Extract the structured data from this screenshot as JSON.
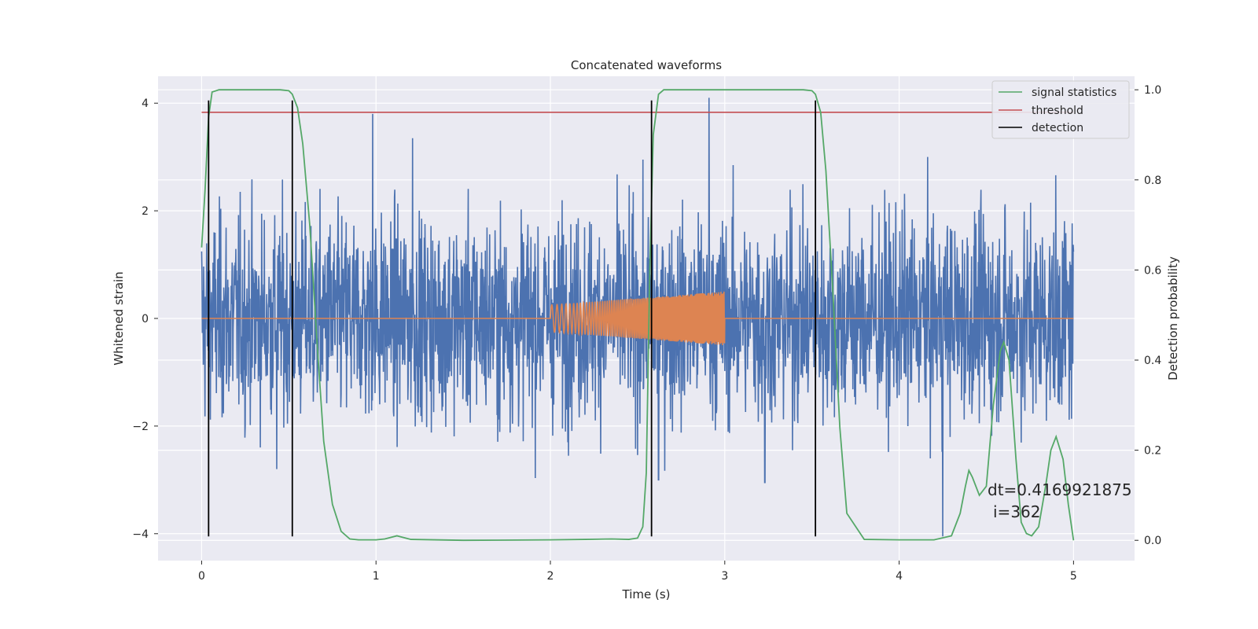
{
  "chart_data": {
    "type": "line",
    "title": "Concatenated waveforms",
    "xlabel": "Time (s)",
    "ylabel": "Whitened strain",
    "y2label": "Detection probability",
    "xlim": [
      -0.25,
      5.35
    ],
    "ylim": [
      -4.5,
      4.5
    ],
    "y2lim": [
      -0.045,
      1.03
    ],
    "xticks": [
      0,
      1,
      2,
      3,
      4,
      5
    ],
    "yticks": [
      -4,
      -2,
      0,
      2,
      4
    ],
    "y2ticks": [
      0.0,
      0.2,
      0.4,
      0.6,
      0.8,
      1.0
    ],
    "x_tick_labels": [
      "0",
      "1",
      "2",
      "3",
      "4",
      "5"
    ],
    "y_tick_labels": [
      "−4",
      "−2",
      "0",
      "2",
      "4"
    ],
    "y2_tick_labels": [
      "0.0",
      "0.2",
      "0.4",
      "0.6",
      "0.8",
      "1.0"
    ],
    "grid": true,
    "legend_position": "top-right",
    "legend": [
      {
        "name": "signal statistics",
        "color": "#55a868"
      },
      {
        "name": "threshold",
        "color": "#c44e52"
      },
      {
        "name": "detection",
        "color": "#000000"
      }
    ],
    "noise_series": {
      "color": "#4c72b0",
      "x_range": [
        0,
        5
      ],
      "typical_amplitude": 1.3,
      "peaks": [
        {
          "x": 0.98,
          "y": 3.8
        },
        {
          "x": 1.21,
          "y": 3.35
        },
        {
          "x": 2.91,
          "y": 4.1
        },
        {
          "x": 4.25,
          "y": -4.05
        },
        {
          "x": 2.62,
          "y": -3.0
        },
        {
          "x": 3.23,
          "y": -3.05
        },
        {
          "x": 0.43,
          "y": -2.8
        }
      ]
    },
    "chirp_series": {
      "color": "#dd8452",
      "x_range": [
        0,
        5
      ],
      "burst_start": 2.0,
      "burst_end": 3.0,
      "amplitude_start": 0.25,
      "amplitude_end": 0.5
    },
    "signal_statistics": {
      "color": "#55a868",
      "x": [
        0.0,
        0.02,
        0.04,
        0.06,
        0.1,
        0.2,
        0.3,
        0.4,
        0.45,
        0.5,
        0.52,
        0.55,
        0.58,
        0.62,
        0.66,
        0.7,
        0.75,
        0.8,
        0.85,
        0.9,
        1.0,
        1.05,
        1.12,
        1.2,
        1.5,
        2.0,
        2.2,
        2.35,
        2.45,
        2.5,
        2.53,
        2.55,
        2.57,
        2.59,
        2.62,
        2.65,
        2.7,
        3.0,
        3.3,
        3.45,
        3.5,
        3.52,
        3.55,
        3.58,
        3.62,
        3.66,
        3.7,
        3.8,
        4.0,
        4.2,
        4.3,
        4.35,
        4.38,
        4.4,
        4.42,
        4.46,
        4.5,
        4.54,
        4.58,
        4.6,
        4.63,
        4.67,
        4.7,
        4.73,
        4.76,
        4.8,
        4.84,
        4.87,
        4.9,
        4.94,
        4.97,
        5.0
      ],
      "y": [
        0.65,
        0.78,
        0.94,
        0.995,
        1.0,
        1.0,
        1.0,
        1.0,
        1.0,
        0.998,
        0.99,
        0.96,
        0.88,
        0.7,
        0.45,
        0.22,
        0.08,
        0.02,
        0.003,
        0.001,
        0.001,
        0.003,
        0.01,
        0.002,
        0.0,
        0.001,
        0.002,
        0.003,
        0.002,
        0.005,
        0.03,
        0.15,
        0.6,
        0.9,
        0.99,
        1.0,
        1.0,
        1.0,
        1.0,
        1.0,
        0.998,
        0.99,
        0.95,
        0.82,
        0.55,
        0.25,
        0.06,
        0.002,
        0.001,
        0.001,
        0.01,
        0.06,
        0.12,
        0.155,
        0.14,
        0.1,
        0.12,
        0.3,
        0.42,
        0.44,
        0.4,
        0.18,
        0.04,
        0.015,
        0.01,
        0.03,
        0.12,
        0.2,
        0.23,
        0.18,
        0.08,
        0.0
      ]
    },
    "threshold": {
      "color": "#c44e52",
      "y": 0.95,
      "x_range": [
        0,
        5
      ]
    },
    "detections": {
      "color": "#000000",
      "x": [
        0.04,
        0.52,
        2.58,
        3.52
      ],
      "y_range": [
        -4.05,
        4.05
      ]
    },
    "annotation": {
      "text_line1": "dt=0.4169921875",
      "text_line2": "i=362",
      "x": 4.5,
      "y": 0.1
    }
  }
}
